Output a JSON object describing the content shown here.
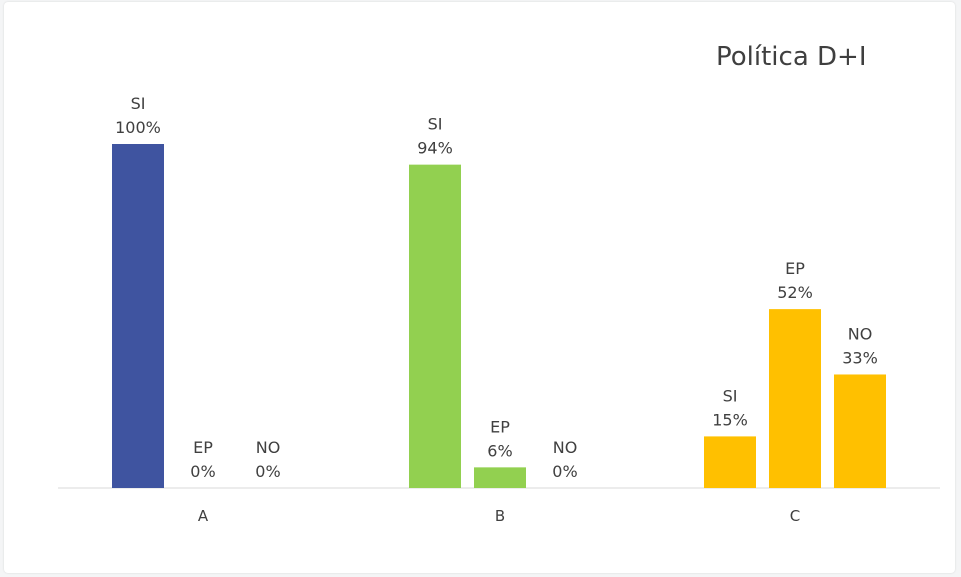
{
  "chart_data": {
    "type": "bar",
    "title": "Política D+I",
    "categories": [
      "A",
      "B",
      "C"
    ],
    "bar_labels": [
      "SI",
      "EP",
      "NO"
    ],
    "groups": [
      {
        "category": "A",
        "color": "#3f54a0",
        "values": [
          100,
          0,
          0
        ],
        "value_labels": [
          "100%",
          "0%",
          "0%"
        ]
      },
      {
        "category": "B",
        "color": "#92d050",
        "values": [
          94,
          6,
          0
        ],
        "value_labels": [
          "94%",
          "6%",
          "0%"
        ]
      },
      {
        "category": "C",
        "color": "#ffc000",
        "values": [
          15,
          52,
          33
        ],
        "value_labels": [
          "15%",
          "52%",
          "33%"
        ]
      }
    ],
    "ylim": [
      0,
      100
    ],
    "grid": false,
    "legend": "none"
  }
}
